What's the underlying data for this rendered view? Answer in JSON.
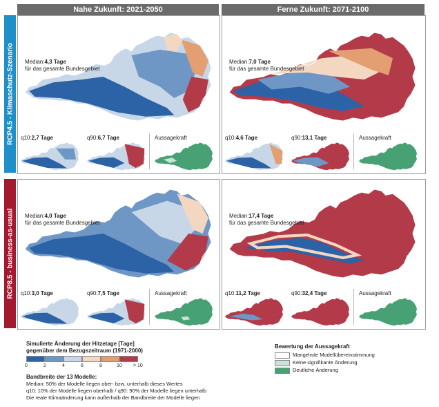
{
  "columns": [
    "Nahe Zukunft: 2021-2050",
    "Ferne Zukunft: 2071-2100"
  ],
  "rows": [
    "RCP4.5 - Klimaschutz-Szenario",
    "RCP8.5 - business-as-usual"
  ],
  "colors": {
    "header": "#6b6b6b",
    "rcp45": "#1f8fc9",
    "rcp85": "#a3192e",
    "c0": "#2c62a6",
    "c2": "#6f97c6",
    "c4": "#c8d7e8",
    "c6": "#f4d7c1",
    "c8": "#e39e72",
    "c10": "#b33a48",
    "agree_low": "#ffffff",
    "agree_none": "#c9e4d6",
    "agree_clear": "#48a174"
  },
  "panels": [
    {
      "median_label": "Median:",
      "median_value": "4,3 Tage",
      "median_sub": "für das gesamte Bundesgebiet",
      "q10_label": "q10:",
      "q10_value": "2,7 Tage",
      "q90_label": "q90:",
      "q90_value": "6,7 Tage",
      "aussage": "Aussagekraft"
    },
    {
      "median_label": "Median:",
      "median_value": "7,0 Tage",
      "median_sub": "für das gesamte Bundesgebiet",
      "q10_label": "q10:",
      "q10_value": "4,6 Tage",
      "q90_label": "q90:",
      "q90_value": "13,1 Tage",
      "aussage": "Aussagekraft"
    },
    {
      "median_label": "Median:",
      "median_value": "4,0 Tage",
      "median_sub": "für das gesamte Bundesgebiet",
      "q10_label": "q10:",
      "q10_value": "3,0 Tage",
      "q90_label": "q90:",
      "q90_value": "7,5 Tage",
      "aussage": "Aussagekraft"
    },
    {
      "median_label": "Median:",
      "median_value": "17,4 Tage",
      "median_sub": "für das gesamte Bundesgebiet",
      "q10_label": "q10:",
      "q10_value": "11,2 Tage",
      "q90_label": "q90:",
      "q90_value": "32,4 Tage",
      "aussage": "Aussagekraft"
    }
  ],
  "legend": {
    "title1": "Simulierte Änderung der Hitzetage [Tage]",
    "title2": "gegenüber dem Bezugszeitraum (1971-2000)",
    "ticks": [
      "0",
      "2",
      "4",
      "6",
      "8",
      "10",
      "> 10"
    ],
    "range_title": "Bandbreite der 13 Modelle:",
    "range_line1": "Median: 50% der Modelle liegen ober- bzw. unterhalb dieses Wertes",
    "range_line2": "q10: 10% der Modelle liegen oberhalb / q90: 90% der Modelle liegen unterhalb",
    "range_line3": "Die reale Klimaänderung kann außerhalb der Bandbreite der Modelle liegen",
    "agree_title": "Bewertung der Aussagekraft",
    "agree_items": [
      "Mangelnde Modellübereinstimmung",
      "Keine signifikante Änderung",
      "Deutliche Änderung"
    ]
  }
}
